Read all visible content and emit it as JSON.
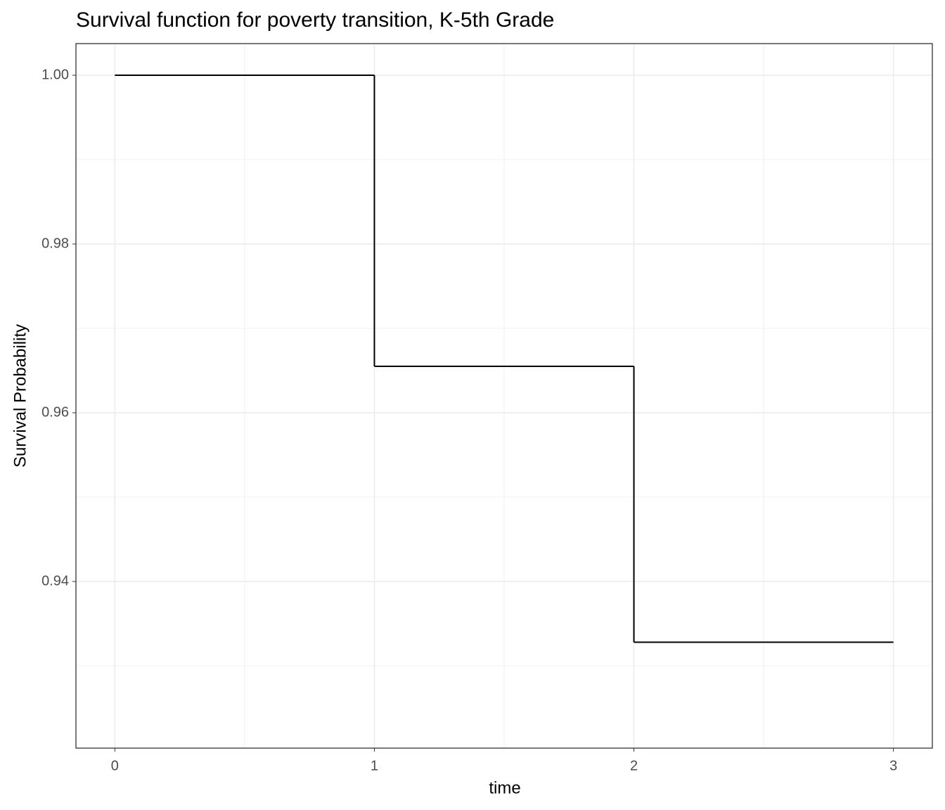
{
  "chart_data": {
    "type": "step",
    "title": "Survival function for poverty transition, K-5th Grade",
    "x_label": "time",
    "y_label": "Survival Probability",
    "x": [
      0,
      1,
      2,
      3
    ],
    "values": [
      1,
      0.9655,
      0.9328,
      0.9328
    ],
    "color": "#000000",
    "xlim": [
      -0.15,
      3.15
    ],
    "ylim": [
      0.92025,
      1.00375
    ],
    "xticks": [
      0,
      1,
      2,
      3
    ],
    "yticks": [
      {
        "value": 0.94,
        "label": "0.94"
      },
      {
        "value": 0.96,
        "label": "0.96"
      },
      {
        "value": 0.98,
        "label": "0.98"
      },
      {
        "value": 1,
        "label": "1.00"
      }
    ],
    "grid": true,
    "minor_grid": true
  }
}
